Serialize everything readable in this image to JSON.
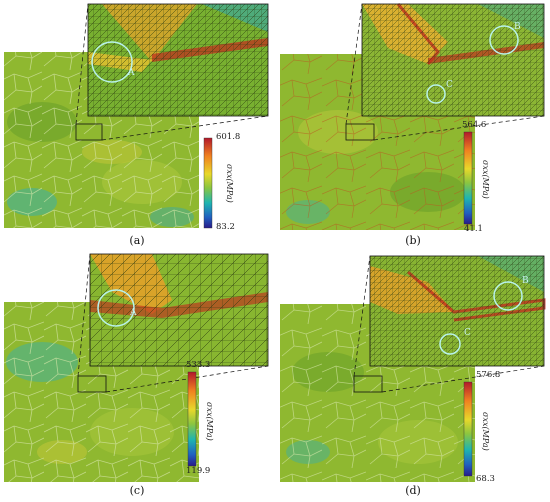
{
  "panels": [
    {
      "id": "a",
      "caption": "(a)",
      "colorbar": {
        "max": "601.8",
        "min": "83.2",
        "title": "σxx(MPa)"
      },
      "markers": [
        "A"
      ]
    },
    {
      "id": "b",
      "caption": "(b)",
      "colorbar": {
        "max": "564.6",
        "min": "41.1",
        "title": "σxx(MPa)"
      },
      "markers": [
        "B",
        "C"
      ]
    },
    {
      "id": "c",
      "caption": "(c)",
      "colorbar": {
        "max": "533.3",
        "min": "119.9",
        "title": "σxx(MPa)"
      },
      "markers": [
        "A"
      ]
    },
    {
      "id": "d",
      "caption": "(d)",
      "colorbar": {
        "max": "576.8",
        "min": "68.3",
        "title": "σxx(MPa)"
      },
      "markers": [
        "B",
        "C"
      ]
    }
  ],
  "colors": {
    "field_base": "#8fb830",
    "field_high": "#e8a020",
    "field_peak": "#c0301e",
    "field_low": "#2ea8b8",
    "marker_circle": "#b8f2ea"
  }
}
